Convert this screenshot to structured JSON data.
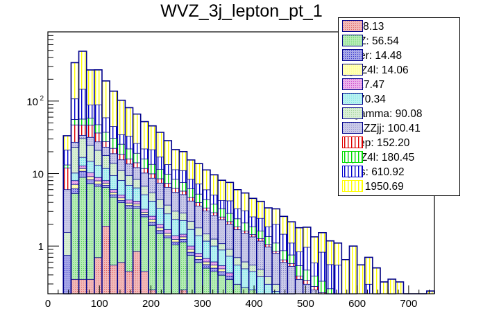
{
  "chart_data": {
    "type": "bar",
    "stacked": true,
    "title": "WVZ_3j_lepton_pt_1",
    "xlabel": "",
    "ylabel": "",
    "xlim": [
      0,
      750
    ],
    "ylim": [
      0.22,
      900
    ],
    "yscale": "log",
    "bin_width": 15,
    "x_ticks": [
      "0",
      "100",
      "200",
      "300",
      "400",
      "500",
      "600",
      "700"
    ],
    "x_tick_values": [
      0,
      100,
      200,
      300,
      400,
      500,
      600,
      700
    ],
    "y_ticks": [
      "1",
      "10",
      "10^2"
    ],
    "y_tick_values": [
      1,
      10,
      100
    ],
    "legend_position": "top-right",
    "bin_edges_start": 0,
    "series_stack_order": [
      "VH",
      "WVZ",
      "Other",
      "ggZZ4l",
      "tZ",
      "ttll",
      "Zllgamma",
      "VBSZZjj",
      "ttdilep",
      "qqZZ4l",
      "Zjets",
      "WZ"
    ],
    "series": [
      {
        "name": "VH",
        "legend": "VH: 8.13",
        "color": "#e06060",
        "pattern": "cross",
        "values": [
          0,
          0,
          0,
          0.35,
          0.35,
          0.35,
          0.7,
          1.9,
          0.55,
          0.6,
          0.45,
          0.85,
          0.45,
          0.25,
          0,
          0.1,
          0,
          0.25,
          0,
          0,
          0,
          0,
          0,
          0,
          0,
          0,
          0,
          0,
          0,
          0,
          0,
          0,
          0,
          0,
          0,
          0,
          0,
          0,
          0,
          0,
          0,
          0,
          0,
          0,
          0,
          0,
          0,
          0,
          0,
          0
        ]
      },
      {
        "name": "WVZ",
        "legend": "WVZ: 56.54",
        "color": "#5ad35a",
        "pattern": "cross",
        "values": [
          0,
          0,
          0.2,
          5.0,
          8.6,
          7.0,
          6.0,
          4.6,
          4.2,
          3.4,
          2.9,
          2.5,
          2.1,
          1.7,
          1.5,
          1.2,
          1.05,
          0.9,
          0.75,
          0.6,
          0.5,
          0.45,
          0.4,
          0.35,
          0.3,
          0.27,
          0.25,
          0.2,
          0.15,
          0.12,
          0.1,
          0.08,
          0,
          0,
          0,
          0,
          0,
          0,
          0,
          0,
          0,
          0,
          0,
          0,
          0,
          0,
          0,
          0,
          0,
          0
        ]
      },
      {
        "name": "Other",
        "legend": "Other: 14.48",
        "color": "#3a3acc",
        "pattern": "cross",
        "values": [
          0,
          0,
          0.55,
          0.9,
          1.9,
          0.9,
          0.5,
          0.45,
          0.4,
          0.3,
          0.3,
          0.25,
          0.2,
          0.2,
          0.15,
          0.1,
          0.1,
          0.1,
          0.08,
          0.06,
          0.06,
          0.05,
          0.05,
          0.04,
          0,
          0,
          0,
          0,
          0,
          0,
          0,
          0,
          0,
          0,
          0,
          0,
          0,
          0,
          0,
          0,
          0,
          0,
          0,
          0,
          0,
          0,
          0,
          0,
          0,
          0
        ]
      },
      {
        "name": "ggZZ4l",
        "legend": "ggZZ4l: 14.06",
        "color": "#ffff60",
        "pattern": "cross",
        "values": [
          0,
          0,
          0,
          0.9,
          1.0,
          0.9,
          0.8,
          0.5,
          0.4,
          0.35,
          0.3,
          0.25,
          0.2,
          0.2,
          0.15,
          0.12,
          0.1,
          0.1,
          0.08,
          0.06,
          0.05,
          0.05,
          0.04,
          0,
          0,
          0,
          0,
          0,
          0,
          0,
          0,
          0,
          0,
          0,
          0,
          0,
          0,
          0,
          0,
          0,
          0,
          0,
          0,
          0,
          0,
          0,
          0,
          0,
          0,
          0
        ]
      },
      {
        "name": "tZ",
        "legend": "tZ: 17.47",
        "color": "#d050d0",
        "pattern": "cross",
        "values": [
          0,
          0,
          0,
          0.9,
          1.0,
          1.2,
          0.9,
          0.6,
          0.5,
          0.45,
          0.4,
          0.35,
          0.3,
          0.25,
          0.2,
          0.18,
          0.15,
          0.12,
          0.1,
          0.08,
          0.07,
          0.06,
          0.05,
          0.04,
          0,
          0,
          0,
          0,
          0,
          0,
          0,
          0,
          0,
          0,
          0,
          0,
          0,
          0,
          0,
          0,
          0,
          0,
          0,
          0,
          0,
          0,
          0,
          0,
          0,
          0
        ]
      },
      {
        "name": "ttll",
        "legend": "ttll: 70.34",
        "color": "#60e0e0",
        "pattern": "cross",
        "values": [
          0,
          0,
          0,
          2.2,
          4.0,
          4.5,
          4.2,
          3.8,
          3.4,
          3.0,
          2.6,
          2.2,
          1.9,
          1.6,
          1.35,
          1.1,
          0.95,
          0.8,
          0.7,
          0.6,
          0.5,
          0.4,
          0.35,
          0.3,
          0.25,
          0.22,
          0.2,
          0.18,
          0.15,
          0.12,
          0,
          0,
          0,
          0,
          0,
          0,
          0,
          0,
          0,
          0,
          0,
          0,
          0,
          0,
          0,
          0,
          0,
          0,
          0,
          0
        ]
      },
      {
        "name": "Zllgamma",
        "legend": "Zllgamma: 90.08",
        "color": "#a8d8a0",
        "pattern": "cross",
        "values": [
          0,
          0,
          0.8,
          13,
          14,
          10,
          8,
          6,
          4.5,
          3.0,
          2.5,
          2.0,
          1.6,
          1.3,
          1.1,
          0.9,
          0.7,
          0.6,
          0.5,
          0.4,
          0.3,
          0.25,
          0.2,
          0.18,
          0.15,
          0.12,
          0.1,
          0.1,
          0.08,
          0.06,
          0.05,
          0.05,
          0,
          0,
          0,
          0,
          0,
          0,
          0,
          0,
          0,
          0,
          0,
          0,
          0,
          0,
          0,
          0,
          0,
          0
        ]
      },
      {
        "name": "VBSZZjj",
        "legend": "VBSZZjj: 100.41",
        "color": "#8888cc",
        "pattern": "cross",
        "values": [
          0,
          0,
          4.5,
          4.0,
          3.0,
          7.0,
          6.5,
          5.5,
          5.0,
          4.5,
          4.2,
          3.8,
          3.5,
          3.2,
          3.0,
          2.8,
          2.5,
          2.3,
          2.0,
          1.8,
          1.6,
          1.4,
          1.25,
          1.1,
          1.0,
          0.9,
          0.8,
          0.7,
          0.6,
          0.5,
          0.45,
          0.4,
          0.35,
          0.3,
          0.25,
          0.2,
          0.15,
          0.1,
          0,
          0,
          0,
          0,
          0,
          0,
          0,
          0,
          0,
          0,
          0,
          0
        ]
      },
      {
        "name": "ttdilep",
        "legend": "ttdilep: 152.20",
        "color": "#dd0000",
        "pattern": "vertical",
        "values": [
          0,
          0,
          6.0,
          20,
          13,
          15,
          9,
          4.5,
          3.5,
          3.0,
          2.4,
          2.0,
          1.6,
          1.3,
          1.1,
          0.9,
          0.75,
          0.6,
          0.5,
          0.4,
          0.3,
          0.25,
          0.2,
          0.18,
          0.15,
          0.12,
          0.1,
          0.1,
          0.08,
          0.06,
          0.05,
          0.05,
          0.04,
          0.04,
          0.03,
          0.03,
          0.03,
          0.03,
          0,
          0,
          0,
          0,
          0,
          0,
          0,
          0,
          0,
          0,
          0,
          0
        ]
      },
      {
        "name": "qqZZ4l",
        "legend": "qqZZ4l: 180.45",
        "color": "#00dd00",
        "pattern": "vertical",
        "values": [
          0,
          0,
          1.2,
          9.0,
          10,
          12,
          11,
          9.5,
          8.5,
          7.0,
          6.0,
          5.0,
          4.2,
          3.5,
          3.0,
          2.5,
          2.1,
          1.8,
          1.5,
          1.25,
          1.05,
          0.9,
          0.75,
          0.65,
          0.55,
          0.47,
          0.4,
          0.35,
          0.3,
          0.25,
          0.22,
          0.18,
          0.15,
          0.13,
          0.11,
          0.1,
          0.08,
          0.07,
          0,
          0,
          0,
          0,
          0,
          0,
          0,
          0,
          0,
          0,
          0,
          0
        ]
      },
      {
        "name": "Zjets",
        "legend": "Zjets: 610.92",
        "color": "#0000cc",
        "pattern": "vertical",
        "values": [
          0,
          0,
          8,
          52,
          90,
          30,
          42,
          22,
          14,
          9,
          11,
          7,
          6,
          8,
          5.5,
          3.5,
          3.0,
          3.5,
          2.2,
          2.0,
          1.6,
          1.3,
          1.0,
          1.4,
          0.9,
          1.0,
          0.7,
          0.8,
          0.5,
          0.9,
          0.6,
          0.35,
          0.3,
          0.5,
          0.2,
          0.5,
          0.3,
          0.35,
          0.2,
          0.2,
          0,
          0.3,
          0.05,
          0,
          0.05,
          0,
          0,
          0,
          0,
          0
        ]
      },
      {
        "name": "WZ",
        "legend": "WZ: 1950.69",
        "color": "#ffff00",
        "pattern": "vertical",
        "values": [
          0,
          0,
          12,
          230,
          340,
          180,
          180,
          130,
          92,
          68,
          48,
          40,
          30,
          24,
          20,
          15,
          10,
          9,
          7,
          6.5,
          5.2,
          4.5,
          3.8,
          3.3,
          2.7,
          2.3,
          2.0,
          1.7,
          1.5,
          1.25,
          1.1,
          1.05,
          0.95,
          0.85,
          0.75,
          0.7,
          0.62,
          0.55,
          0.45,
          0.8,
          0.55,
          0.4,
          0.45,
          0.32,
          0.3,
          0.32,
          0.2,
          0.22,
          0.22,
          0.24
        ]
      }
    ]
  }
}
